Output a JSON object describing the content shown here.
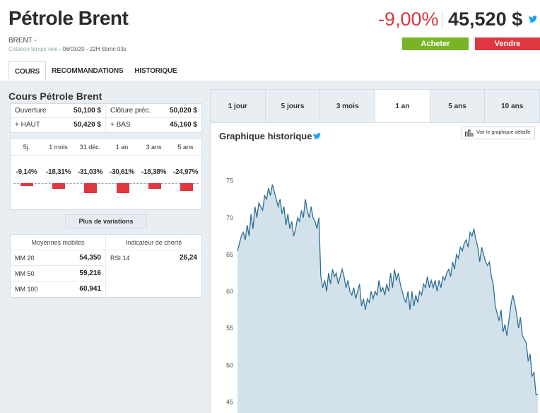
{
  "header": {
    "title": "Pétrole Brent",
    "ticker": "BRENT -",
    "quote_label": "Cotation temps réel",
    "quote_time": " - 06/03/20 - 22H 55mn 03s",
    "change": "-9,00%",
    "price": "45,520 $",
    "buy_label": "Acheter",
    "sell_label": "Vendre",
    "icon": "twitter-icon"
  },
  "tabs": [
    "COURS",
    "RECOMMANDATIONS",
    "HISTORIQUE"
  ],
  "left": {
    "title": "Cours Pétrole Brent",
    "quotes": [
      {
        "l1": "Ouverture",
        "v1": "50,100 $",
        "l2": "Clôture préc.",
        "v2": "50,020 $"
      },
      {
        "l1": "+ HAUT",
        "v1": "50,420 $",
        "l2": "+ BAS",
        "v2": "45,160 $"
      }
    ],
    "variations": {
      "periods": [
        "5j.",
        "1 mois",
        "31 déc.",
        "1 an",
        "3 ans",
        "5 ans"
      ],
      "labels": [
        "-9,14%",
        "-18,31%",
        "-31,03%",
        "-30,61%",
        "-18,38%",
        "-24,97%"
      ],
      "values": [
        -9.14,
        -18.31,
        -31.03,
        -30.61,
        -18.38,
        -24.97
      ],
      "color": "#e0363f"
    },
    "more_label": "Plus de variations",
    "ma_header": "Moyennes mobiles",
    "rsi_header": "Indicateur de cherté",
    "moving_averages": [
      {
        "label": "MM 20",
        "value": "54,350"
      },
      {
        "label": "MM 50",
        "value": "59,216"
      },
      {
        "label": "MM 100",
        "value": "60,941"
      }
    ],
    "rsi": {
      "label": "RSI 14",
      "value": "26,24"
    }
  },
  "periods": [
    "1 jour",
    "5 jours",
    "3 mois",
    "1 an",
    "5 ans",
    "10 ans"
  ],
  "chart_panel": {
    "title": "Graphique historique",
    "detail_label": "Voir le graphique détaillé",
    "icon": "bar-chart-icon"
  },
  "chart_data": {
    "type": "area",
    "title": "",
    "xlabel": "",
    "ylabel": "",
    "ylim": [
      43.5,
      79
    ],
    "yticks": [
      45,
      50,
      55,
      60,
      65,
      70,
      75
    ],
    "grid": false,
    "series": [
      {
        "values": [
          65.5,
          66.5,
          67.5,
          68.0,
          67.0,
          69.0,
          67.5,
          70.5,
          68.5,
          71.5,
          70.0,
          72.0,
          71.5,
          71.0,
          73.0,
          72.5,
          74.0,
          73.0,
          74.5,
          73.5,
          72.5,
          71.5,
          72.5,
          70.5,
          71.5,
          69.0,
          70.5,
          68.5,
          69.5,
          67.5,
          68.5,
          70.0,
          69.5,
          71.0,
          70.0,
          72.5,
          71.0,
          70.0,
          71.5,
          70.0,
          69.5,
          68.5,
          70.0,
          62.0,
          60.5,
          61.5,
          60.0,
          62.5,
          61.0,
          63.0,
          62.0,
          62.5,
          61.0,
          62.0,
          63.0,
          62.0,
          60.5,
          61.5,
          60.0,
          59.5,
          60.5,
          59.0,
          60.0,
          61.0,
          58.0,
          59.0,
          57.5,
          59.0,
          58.5,
          60.0,
          59.0,
          60.0,
          59.5,
          61.5,
          60.0,
          60.5,
          59.5,
          61.0,
          60.0,
          62.5,
          60.5,
          63.0,
          61.5,
          62.5,
          61.0,
          60.0,
          59.0,
          58.5,
          60.0,
          57.5,
          60.0,
          58.0,
          59.5,
          58.5,
          60.0,
          59.5,
          61.0,
          60.5,
          62.0,
          60.5,
          61.5,
          60.5,
          61.5,
          60.0,
          61.5,
          60.5,
          62.0,
          61.5,
          62.5,
          63.0,
          62.0,
          64.0,
          63.0,
          65.0,
          64.5,
          66.0,
          65.5,
          66.5,
          67.0,
          66.0,
          68.0,
          67.5,
          68.5,
          67.0,
          66.0,
          64.0,
          66.0,
          65.0,
          64.0,
          63.5,
          64.0,
          62.0,
          61.0,
          58.0,
          57.0,
          56.0,
          57.5,
          54.5,
          55.5,
          54.0,
          56.0,
          58.0,
          59.5,
          58.5,
          57.0,
          55.0,
          56.5,
          54.0,
          53.5,
          53.0,
          50.5,
          51.5,
          48.5,
          49.0,
          46.0,
          46.0
        ]
      }
    ]
  }
}
